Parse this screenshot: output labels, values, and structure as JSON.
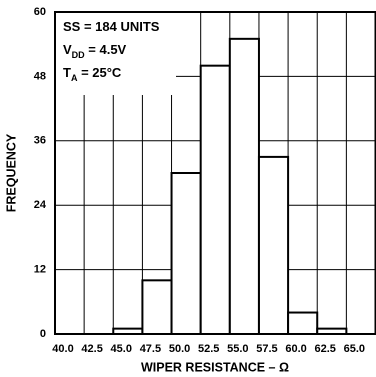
{
  "chart_data": {
    "type": "histogram",
    "x_label": "WIPER RESISTANCE – Ω",
    "y_label": "FREQUENCY",
    "annotations": [
      [
        "SS = 184 UNITS"
      ],
      [
        "V",
        "DD",
        " = 4.5V"
      ],
      [
        "T",
        "A",
        " = 25°C"
      ]
    ],
    "bins": [
      45.0,
      47.5,
      50.0,
      52.5,
      55.0,
      57.5,
      60.0,
      62.5,
      65.0
    ],
    "counts": [
      1,
      10,
      30,
      50,
      55,
      33,
      4,
      1
    ],
    "color": "#ffffff",
    "edge_color": "#000000",
    "xlim": [
      40,
      67.5
    ],
    "xticks": [
      {
        "value": 40,
        "label": "40.0"
      },
      {
        "value": 42.5,
        "label": "42.5"
      },
      {
        "value": 45,
        "label": "45.0"
      },
      {
        "value": 47.5,
        "label": "47.5"
      },
      {
        "value": 50,
        "label": "50.0"
      },
      {
        "value": 52.5,
        "label": "52.5"
      },
      {
        "value": 55,
        "label": "55.0"
      },
      {
        "value": 57.5,
        "label": "57.5"
      },
      {
        "value": 60,
        "label": "60.0"
      },
      {
        "value": 62.5,
        "label": "62.5"
      },
      {
        "value": 65,
        "label": "65.0"
      }
    ],
    "ylim": [
      0,
      60
    ],
    "yticks": [
      0,
      12,
      24,
      36,
      48,
      60
    ],
    "grid": true
  }
}
